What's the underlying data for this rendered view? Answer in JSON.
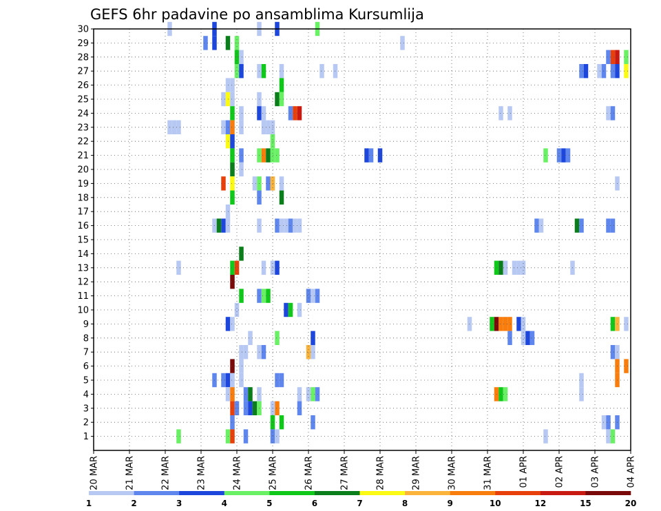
{
  "chart_data": {
    "type": "heatmap",
    "title": "GEFS 6hr padavine po ansamblima Kursumlija",
    "xlabel": "",
    "ylabel": "",
    "x_tick_labels": [
      "20 MAR",
      "21 MAR",
      "22 MAR",
      "23 MAR",
      "24 MAR",
      "25 MAR",
      "26 MAR",
      "27 MAR",
      "28 MAR",
      "29 MAR",
      "30 MAR",
      "31 MAR",
      "01 APR",
      "02 APR",
      "03 APR",
      "04 APR"
    ],
    "y_range": [
      0,
      30
    ],
    "y_ticks": [
      1,
      2,
      3,
      4,
      5,
      6,
      7,
      8,
      9,
      10,
      11,
      12,
      13,
      14,
      15,
      16,
      17,
      18,
      19,
      20,
      21,
      22,
      23,
      24,
      25,
      26,
      27,
      28,
      29,
      30
    ],
    "x_steps_per_day": 4,
    "x_range_steps": [
      0,
      60
    ],
    "grid": true,
    "legend": {
      "placement": "bottom",
      "levels": [
        "1",
        "2",
        "3",
        "4",
        "5",
        "6",
        "7",
        "8",
        "9",
        "10",
        "12",
        "15",
        "20"
      ],
      "colors": [
        "#b7c9f2",
        "#5f86ec",
        "#1c46dc",
        "#6af064",
        "#10c81a",
        "#0a7e1a",
        "#fafa14",
        "#fab43c",
        "#f97d0c",
        "#e8400a",
        "#c81a10",
        "#7a0a0a"
      ]
    },
    "cells": [
      [
        30,
        8.5,
        0
      ],
      [
        30,
        18.5,
        0
      ],
      [
        30,
        13.5,
        2
      ],
      [
        30,
        20.5,
        2
      ],
      [
        30,
        25,
        3
      ],
      [
        29,
        12.5,
        1
      ],
      [
        29,
        13.5,
        2
      ],
      [
        29,
        15,
        5
      ],
      [
        29,
        16,
        3
      ],
      [
        29,
        34.5,
        0
      ],
      [
        28,
        16,
        4
      ],
      [
        28,
        16.5,
        0
      ],
      [
        28,
        57.5,
        1
      ],
      [
        28,
        58,
        9
      ],
      [
        28,
        58.5,
        10
      ],
      [
        28,
        59.5,
        3
      ],
      [
        27,
        16,
        3
      ],
      [
        27,
        16.5,
        2
      ],
      [
        27,
        18.5,
        0
      ],
      [
        27,
        19,
        4
      ],
      [
        27,
        21,
        0
      ],
      [
        27,
        25.5,
        0
      ],
      [
        27,
        27,
        0
      ],
      [
        27,
        54.5,
        1
      ],
      [
        27,
        55,
        2
      ],
      [
        27,
        56.5,
        0
      ],
      [
        27,
        57,
        1
      ],
      [
        27,
        58,
        1
      ],
      [
        27,
        58.5,
        2
      ],
      [
        27,
        59.5,
        6
      ],
      [
        26,
        21,
        4
      ],
      [
        26,
        15,
        0
      ],
      [
        26,
        15.5,
        0
      ],
      [
        25,
        14.5,
        0
      ],
      [
        25,
        15,
        6
      ],
      [
        25,
        15.5,
        0
      ],
      [
        25,
        18.5,
        0
      ],
      [
        25,
        20.5,
        5
      ],
      [
        25,
        21,
        3
      ],
      [
        24,
        15.5,
        4
      ],
      [
        24,
        16.5,
        0
      ],
      [
        24,
        18.5,
        2
      ],
      [
        24,
        19,
        0
      ],
      [
        24,
        22,
        1
      ],
      [
        24,
        22.5,
        9
      ],
      [
        24,
        23,
        10
      ],
      [
        24,
        45.5,
        0
      ],
      [
        24,
        46.5,
        0
      ],
      [
        24,
        57.5,
        0
      ],
      [
        24,
        58,
        1
      ],
      [
        23,
        8.5,
        0
      ],
      [
        23,
        9,
        0
      ],
      [
        23,
        9.5,
        0
      ],
      [
        23,
        14.5,
        0
      ],
      [
        23,
        15,
        1
      ],
      [
        23,
        15.5,
        8
      ],
      [
        23,
        16.5,
        0
      ],
      [
        23,
        19,
        0
      ],
      [
        23,
        19.5,
        0
      ],
      [
        23,
        20,
        0
      ],
      [
        22,
        15,
        6
      ],
      [
        22,
        15.5,
        2
      ],
      [
        22,
        20,
        3
      ],
      [
        21,
        15.5,
        4
      ],
      [
        21,
        16.5,
        1
      ],
      [
        21,
        18.5,
        3
      ],
      [
        21,
        19,
        8
      ],
      [
        21,
        19.5,
        5
      ],
      [
        21,
        20,
        3
      ],
      [
        21,
        20.5,
        3
      ],
      [
        21,
        30.5,
        2
      ],
      [
        21,
        31,
        1
      ],
      [
        21,
        32,
        2
      ],
      [
        21,
        50.5,
        3
      ],
      [
        21,
        52,
        1
      ],
      [
        21,
        52.5,
        2
      ],
      [
        21,
        53,
        1
      ],
      [
        20,
        15.5,
        5
      ],
      [
        20,
        16.5,
        0
      ],
      [
        19,
        14.5,
        9
      ],
      [
        19,
        15.5,
        6
      ],
      [
        19,
        18,
        0
      ],
      [
        19,
        18.5,
        3
      ],
      [
        19,
        19.5,
        1
      ],
      [
        19,
        20,
        7
      ],
      [
        19,
        21,
        0
      ],
      [
        19,
        58.5,
        0
      ],
      [
        18,
        15.5,
        4
      ],
      [
        18,
        18.5,
        1
      ],
      [
        18,
        21,
        5
      ],
      [
        17,
        15,
        0
      ],
      [
        16,
        13.5,
        0
      ],
      [
        16,
        14,
        5
      ],
      [
        16,
        14.5,
        2
      ],
      [
        16,
        15,
        0
      ],
      [
        16,
        18.5,
        0
      ],
      [
        16,
        20.5,
        1
      ],
      [
        16,
        21,
        0
      ],
      [
        16,
        21.5,
        0
      ],
      [
        16,
        22,
        1
      ],
      [
        16,
        22.5,
        0
      ],
      [
        16,
        23,
        0
      ],
      [
        16,
        49.5,
        1
      ],
      [
        16,
        50,
        0
      ],
      [
        16,
        54,
        5
      ],
      [
        16,
        54.5,
        1
      ],
      [
        16,
        57.5,
        1
      ],
      [
        16,
        58,
        1
      ],
      [
        14,
        16.5,
        5
      ],
      [
        13,
        9.5,
        0
      ],
      [
        13,
        15.5,
        4
      ],
      [
        13,
        16,
        9
      ],
      [
        13,
        19,
        0
      ],
      [
        13,
        20,
        0
      ],
      [
        13,
        20.5,
        2
      ],
      [
        13,
        45,
        4
      ],
      [
        13,
        45.5,
        5
      ],
      [
        13,
        46,
        0
      ],
      [
        13,
        47,
        0
      ],
      [
        13,
        47.5,
        0
      ],
      [
        13,
        48,
        0
      ],
      [
        13,
        53.5,
        0
      ],
      [
        12,
        15.5,
        11
      ],
      [
        11,
        16.5,
        4
      ],
      [
        11,
        18.5,
        1
      ],
      [
        11,
        19,
        3
      ],
      [
        11,
        19.5,
        4
      ],
      [
        11,
        24,
        1
      ],
      [
        11,
        24.5,
        0
      ],
      [
        11,
        25,
        1
      ],
      [
        10,
        16,
        0
      ],
      [
        10,
        21.5,
        2
      ],
      [
        10,
        22,
        4
      ],
      [
        10,
        23,
        0
      ],
      [
        9,
        15,
        2
      ],
      [
        9,
        15.5,
        0
      ],
      [
        9,
        42,
        0
      ],
      [
        9,
        44.5,
        4
      ],
      [
        9,
        45,
        11
      ],
      [
        9,
        45.5,
        8
      ],
      [
        9,
        46,
        8
      ],
      [
        9,
        46.5,
        8
      ],
      [
        9,
        47.5,
        2
      ],
      [
        9,
        48,
        0
      ],
      [
        9,
        58,
        4
      ],
      [
        9,
        58.5,
        7
      ],
      [
        9,
        59.5,
        0
      ],
      [
        8,
        17.5,
        0
      ],
      [
        8,
        20.5,
        3
      ],
      [
        8,
        24.5,
        2
      ],
      [
        8,
        46.5,
        1
      ],
      [
        8,
        48,
        0
      ],
      [
        8,
        48.5,
        2
      ],
      [
        8,
        49,
        1
      ],
      [
        7,
        16.5,
        0
      ],
      [
        7,
        17,
        0
      ],
      [
        7,
        18.5,
        0
      ],
      [
        7,
        19,
        1
      ],
      [
        7,
        24,
        7
      ],
      [
        7,
        24.5,
        0
      ],
      [
        7,
        58,
        1
      ],
      [
        7,
        58.5,
        0
      ],
      [
        6,
        15.5,
        11
      ],
      [
        6,
        16.5,
        0
      ],
      [
        6,
        58.5,
        8
      ],
      [
        6,
        59.5,
        8
      ],
      [
        5,
        13.5,
        1
      ],
      [
        5,
        14.5,
        1
      ],
      [
        5,
        15,
        2
      ],
      [
        5,
        15.5,
        0
      ],
      [
        5,
        16.5,
        0
      ],
      [
        5,
        20.5,
        1
      ],
      [
        5,
        21,
        1
      ],
      [
        5,
        54.5,
        0
      ],
      [
        5,
        58.5,
        8
      ],
      [
        4,
        15,
        0
      ],
      [
        4,
        15.5,
        8
      ],
      [
        4,
        17,
        1
      ],
      [
        4,
        17.5,
        5
      ],
      [
        4,
        18.5,
        0
      ],
      [
        4,
        23,
        0
      ],
      [
        4,
        24,
        0
      ],
      [
        4,
        24.5,
        3
      ],
      [
        4,
        25,
        1
      ],
      [
        4,
        45,
        8
      ],
      [
        4,
        45.5,
        4
      ],
      [
        4,
        46,
        3
      ],
      [
        4,
        54.5,
        0
      ],
      [
        3,
        15.5,
        9
      ],
      [
        3,
        16,
        1
      ],
      [
        3,
        17,
        1
      ],
      [
        3,
        17.5,
        2
      ],
      [
        3,
        18,
        5
      ],
      [
        3,
        18.5,
        3
      ],
      [
        3,
        20,
        0
      ],
      [
        3,
        20.5,
        8
      ],
      [
        3,
        23,
        1
      ],
      [
        2,
        15.5,
        1
      ],
      [
        2,
        20,
        4
      ],
      [
        2,
        21,
        4
      ],
      [
        2,
        24.5,
        1
      ],
      [
        2,
        57,
        0
      ],
      [
        2,
        57.5,
        1
      ],
      [
        2,
        58.5,
        1
      ],
      [
        1,
        9.5,
        3
      ],
      [
        1,
        15,
        3
      ],
      [
        1,
        15.5,
        9
      ],
      [
        1,
        17,
        1
      ],
      [
        1,
        20,
        1
      ],
      [
        1,
        20.5,
        0
      ],
      [
        1,
        50.5,
        0
      ],
      [
        1,
        57.5,
        0
      ],
      [
        1,
        58,
        3
      ]
    ]
  }
}
